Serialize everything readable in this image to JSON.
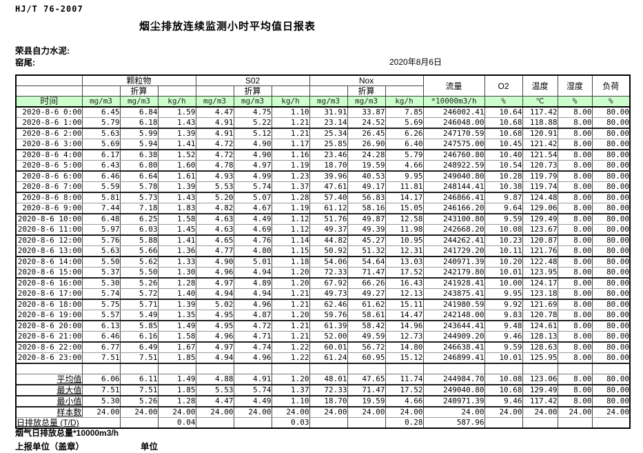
{
  "doc": {
    "standard": "HJ/T  76-2007",
    "title": "烟尘排放连续监测小时平均值日报表",
    "company": "荣县自力水泥:",
    "location": "窑尾:",
    "date": "2020年8月6日"
  },
  "table": {
    "time_header": "时间",
    "converted_label": "折算",
    "groups": [
      {
        "label": "颗粒物"
      },
      {
        "label": "S02"
      },
      {
        "label": "Nox"
      }
    ],
    "single_cols": [
      {
        "label": "流量"
      },
      {
        "label": "O2"
      },
      {
        "label": "温度"
      },
      {
        "label": "湿度"
      },
      {
        "label": "负荷"
      }
    ],
    "units": [
      "mg/m3",
      "mg/m3",
      "kg/h",
      "mg/m3",
      "mg/m3",
      "kg/h",
      "mg/m3",
      "mg/m3",
      "kg/h",
      "*10000m3/h",
      "%",
      "℃",
      "%",
      "%"
    ],
    "rows": [
      {
        "time": "2020-8-6 0:00",
        "values": [
          "6.45",
          "6.84",
          "1.59",
          "4.47",
          "4.75",
          "1.10",
          "31.91",
          "33.87",
          "7.85",
          "246002.41",
          "10.64",
          "117.42",
          "8.00",
          "80.00"
        ]
      },
      {
        "time": "2020-8-6 1:00",
        "values": [
          "5.79",
          "6.18",
          "1.43",
          "4.91",
          "5.22",
          "1.21",
          "23.14",
          "24.52",
          "5.69",
          "246048.00",
          "10.68",
          "118.88",
          "8.00",
          "80.00"
        ]
      },
      {
        "time": "2020-8-6 2:00",
        "values": [
          "5.63",
          "5.99",
          "1.39",
          "4.91",
          "5.12",
          "1.21",
          "25.34",
          "26.45",
          "6.26",
          "247170.59",
          "10.68",
          "120.91",
          "8.00",
          "80.00"
        ]
      },
      {
        "time": "2020-8-6 3:00",
        "values": [
          "5.69",
          "5.94",
          "1.41",
          "4.72",
          "4.90",
          "1.17",
          "25.85",
          "26.90",
          "6.40",
          "247575.00",
          "10.45",
          "121.42",
          "8.00",
          "80.00"
        ]
      },
      {
        "time": "2020-8-6 4:00",
        "values": [
          "6.17",
          "6.38",
          "1.52",
          "4.72",
          "4.90",
          "1.16",
          "23.46",
          "24.28",
          "5.79",
          "246760.80",
          "10.40",
          "121.54",
          "8.00",
          "80.00"
        ]
      },
      {
        "time": "2020-8-6 5:00",
        "values": [
          "6.43",
          "6.80",
          "1.60",
          "4.78",
          "4.97",
          "1.19",
          "18.70",
          "19.59",
          "4.66",
          "248922.59",
          "10.54",
          "120.73",
          "8.00",
          "80.00"
        ]
      },
      {
        "time": "2020-8-6 6:00",
        "values": [
          "6.46",
          "6.64",
          "1.61",
          "4.93",
          "4.99",
          "1.23",
          "39.96",
          "40.53",
          "9.95",
          "249040.80",
          "10.28",
          "119.79",
          "8.00",
          "80.00"
        ]
      },
      {
        "time": "2020-8-6 7:00",
        "values": [
          "5.59",
          "5.78",
          "1.39",
          "5.53",
          "5.74",
          "1.37",
          "47.61",
          "49.17",
          "11.81",
          "248144.41",
          "10.38",
          "119.74",
          "8.00",
          "80.00"
        ]
      },
      {
        "time": "2020-8-6 8:00",
        "values": [
          "5.81",
          "5.73",
          "1.43",
          "5.20",
          "5.07",
          "1.28",
          "57.40",
          "56.83",
          "14.17",
          "246866.41",
          "9.87",
          "124.48",
          "8.00",
          "80.00"
        ]
      },
      {
        "time": "2020-8-6 9:00",
        "values": [
          "7.44",
          "7.18",
          "1.83",
          "4.82",
          "4.67",
          "1.19",
          "61.12",
          "58.16",
          "15.05",
          "246166.20",
          "9.64",
          "129.06",
          "8.00",
          "80.00"
        ]
      },
      {
        "time": "2020-8-6 10:00",
        "values": [
          "6.48",
          "6.25",
          "1.58",
          "4.63",
          "4.49",
          "1.12",
          "51.76",
          "49.87",
          "12.58",
          "243100.80",
          "9.59",
          "129.49",
          "8.00",
          "80.00"
        ]
      },
      {
        "time": "2020-8-6 11:00",
        "values": [
          "5.97",
          "6.03",
          "1.45",
          "4.63",
          "4.69",
          "1.12",
          "49.37",
          "49.39",
          "11.98",
          "242668.20",
          "10.08",
          "123.67",
          "8.00",
          "80.00"
        ]
      },
      {
        "time": "2020-8-6 12:00",
        "values": [
          "5.76",
          "5.88",
          "1.41",
          "4.65",
          "4.76",
          "1.14",
          "44.82",
          "45.27",
          "10.95",
          "244262.41",
          "10.23",
          "120.87",
          "8.00",
          "80.00"
        ]
      },
      {
        "time": "2020-8-6 13:00",
        "values": [
          "5.63",
          "5.66",
          "1.36",
          "4.77",
          "4.80",
          "1.15",
          "50.92",
          "51.32",
          "12.31",
          "241729.20",
          "10.11",
          "121.76",
          "8.00",
          "80.00"
        ]
      },
      {
        "time": "2020-8-6 14:00",
        "values": [
          "5.50",
          "5.62",
          "1.33",
          "4.90",
          "5.01",
          "1.18",
          "54.06",
          "54.64",
          "13.03",
          "240971.39",
          "10.20",
          "122.48",
          "8.00",
          "80.00"
        ]
      },
      {
        "time": "2020-8-6 15:00",
        "values": [
          "5.37",
          "5.50",
          "1.30",
          "4.96",
          "4.94",
          "1.20",
          "72.33",
          "71.47",
          "17.52",
          "242179.80",
          "10.01",
          "123.95",
          "8.00",
          "80.00"
        ]
      },
      {
        "time": "2020-8-6 16:00",
        "values": [
          "5.30",
          "5.26",
          "1.28",
          "4.97",
          "4.89",
          "1.20",
          "67.92",
          "66.26",
          "16.43",
          "241928.41",
          "10.00",
          "124.17",
          "8.00",
          "80.00"
        ]
      },
      {
        "time": "2020-8-6 17:00",
        "values": [
          "5.74",
          "5.72",
          "1.40",
          "4.94",
          "4.94",
          "1.21",
          "49.73",
          "49.27",
          "12.13",
          "243875.41",
          "9.95",
          "123.18",
          "8.00",
          "80.00"
        ]
      },
      {
        "time": "2020-8-6 18:00",
        "values": [
          "5.75",
          "5.71",
          "1.39",
          "5.02",
          "4.96",
          "1.21",
          "62.46",
          "61.62",
          "15.11",
          "241980.59",
          "9.92",
          "121.69",
          "8.00",
          "80.00"
        ]
      },
      {
        "time": "2020-8-6 19:00",
        "values": [
          "5.57",
          "5.49",
          "1.35",
          "4.95",
          "4.87",
          "1.20",
          "59.76",
          "58.61",
          "14.47",
          "242148.00",
          "9.83",
          "120.78",
          "8.00",
          "80.00"
        ]
      },
      {
        "time": "2020-8-6 20:00",
        "values": [
          "6.13",
          "5.85",
          "1.49",
          "4.95",
          "4.72",
          "1.21",
          "61.39",
          "58.42",
          "14.96",
          "243644.41",
          "9.48",
          "124.61",
          "8.00",
          "80.00"
        ]
      },
      {
        "time": "2020-8-6 21:00",
        "values": [
          "6.46",
          "6.16",
          "1.58",
          "4.96",
          "4.71",
          "1.21",
          "52.00",
          "49.59",
          "12.73",
          "244909.20",
          "9.46",
          "128.13",
          "8.00",
          "80.00"
        ]
      },
      {
        "time": "2020-8-6 22:00",
        "values": [
          "6.77",
          "6.49",
          "1.67",
          "4.97",
          "4.74",
          "1.22",
          "60.01",
          "56.72",
          "14.80",
          "246638.41",
          "9.59",
          "128.63",
          "8.00",
          "80.00"
        ]
      },
      {
        "time": "2020-8-6 23:00",
        "values": [
          "7.51",
          "7.51",
          "1.85",
          "4.94",
          "4.96",
          "1.22",
          "61.24",
          "60.95",
          "15.12",
          "246899.41",
          "10.01",
          "125.95",
          "8.00",
          "80.00"
        ]
      }
    ],
    "summary": [
      {
        "label": "平均值",
        "values": [
          "6.06",
          "6.11",
          "1.49",
          "4.88",
          "4.91",
          "1.20",
          "48.01",
          "47.65",
          "11.74",
          "244984.70",
          "10.08",
          "123.06",
          "8.00",
          "80.00"
        ]
      },
      {
        "label": "最大值",
        "values": [
          "7.51",
          "7.51",
          "1.85",
          "5.53",
          "5.74",
          "1.37",
          "72.33",
          "71.47",
          "17.52",
          "249040.80",
          "10.68",
          "129.49",
          "8.00",
          "80.00"
        ]
      },
      {
        "label": "最小值",
        "values": [
          "5.30",
          "5.26",
          "1.28",
          "4.47",
          "4.49",
          "1.10",
          "18.70",
          "19.59",
          "4.66",
          "240971.39",
          "9.46",
          "117.42",
          "8.00",
          "80.00"
        ]
      },
      {
        "label": "样本数",
        "values": [
          "24.00",
          "24.00",
          "24.00",
          "24.00",
          "24.00",
          "24.00",
          "24.00",
          "24.00",
          "24.00",
          "24.00",
          "24.00",
          "24.00",
          "24.00",
          "24.00"
        ]
      }
    ],
    "total_row": {
      "label": "日排放总量 (T/D)",
      "values": [
        "",
        "",
        "0.04",
        "",
        "",
        "0.03",
        "",
        "",
        "0.28",
        "587.96",
        "",
        "",
        "",
        ""
      ]
    }
  },
  "footer": {
    "flue_gas_total": "烟气日排放总量*10000m3/h",
    "reporting_unit": "上报单位（盖章）",
    "unit": "单位"
  }
}
